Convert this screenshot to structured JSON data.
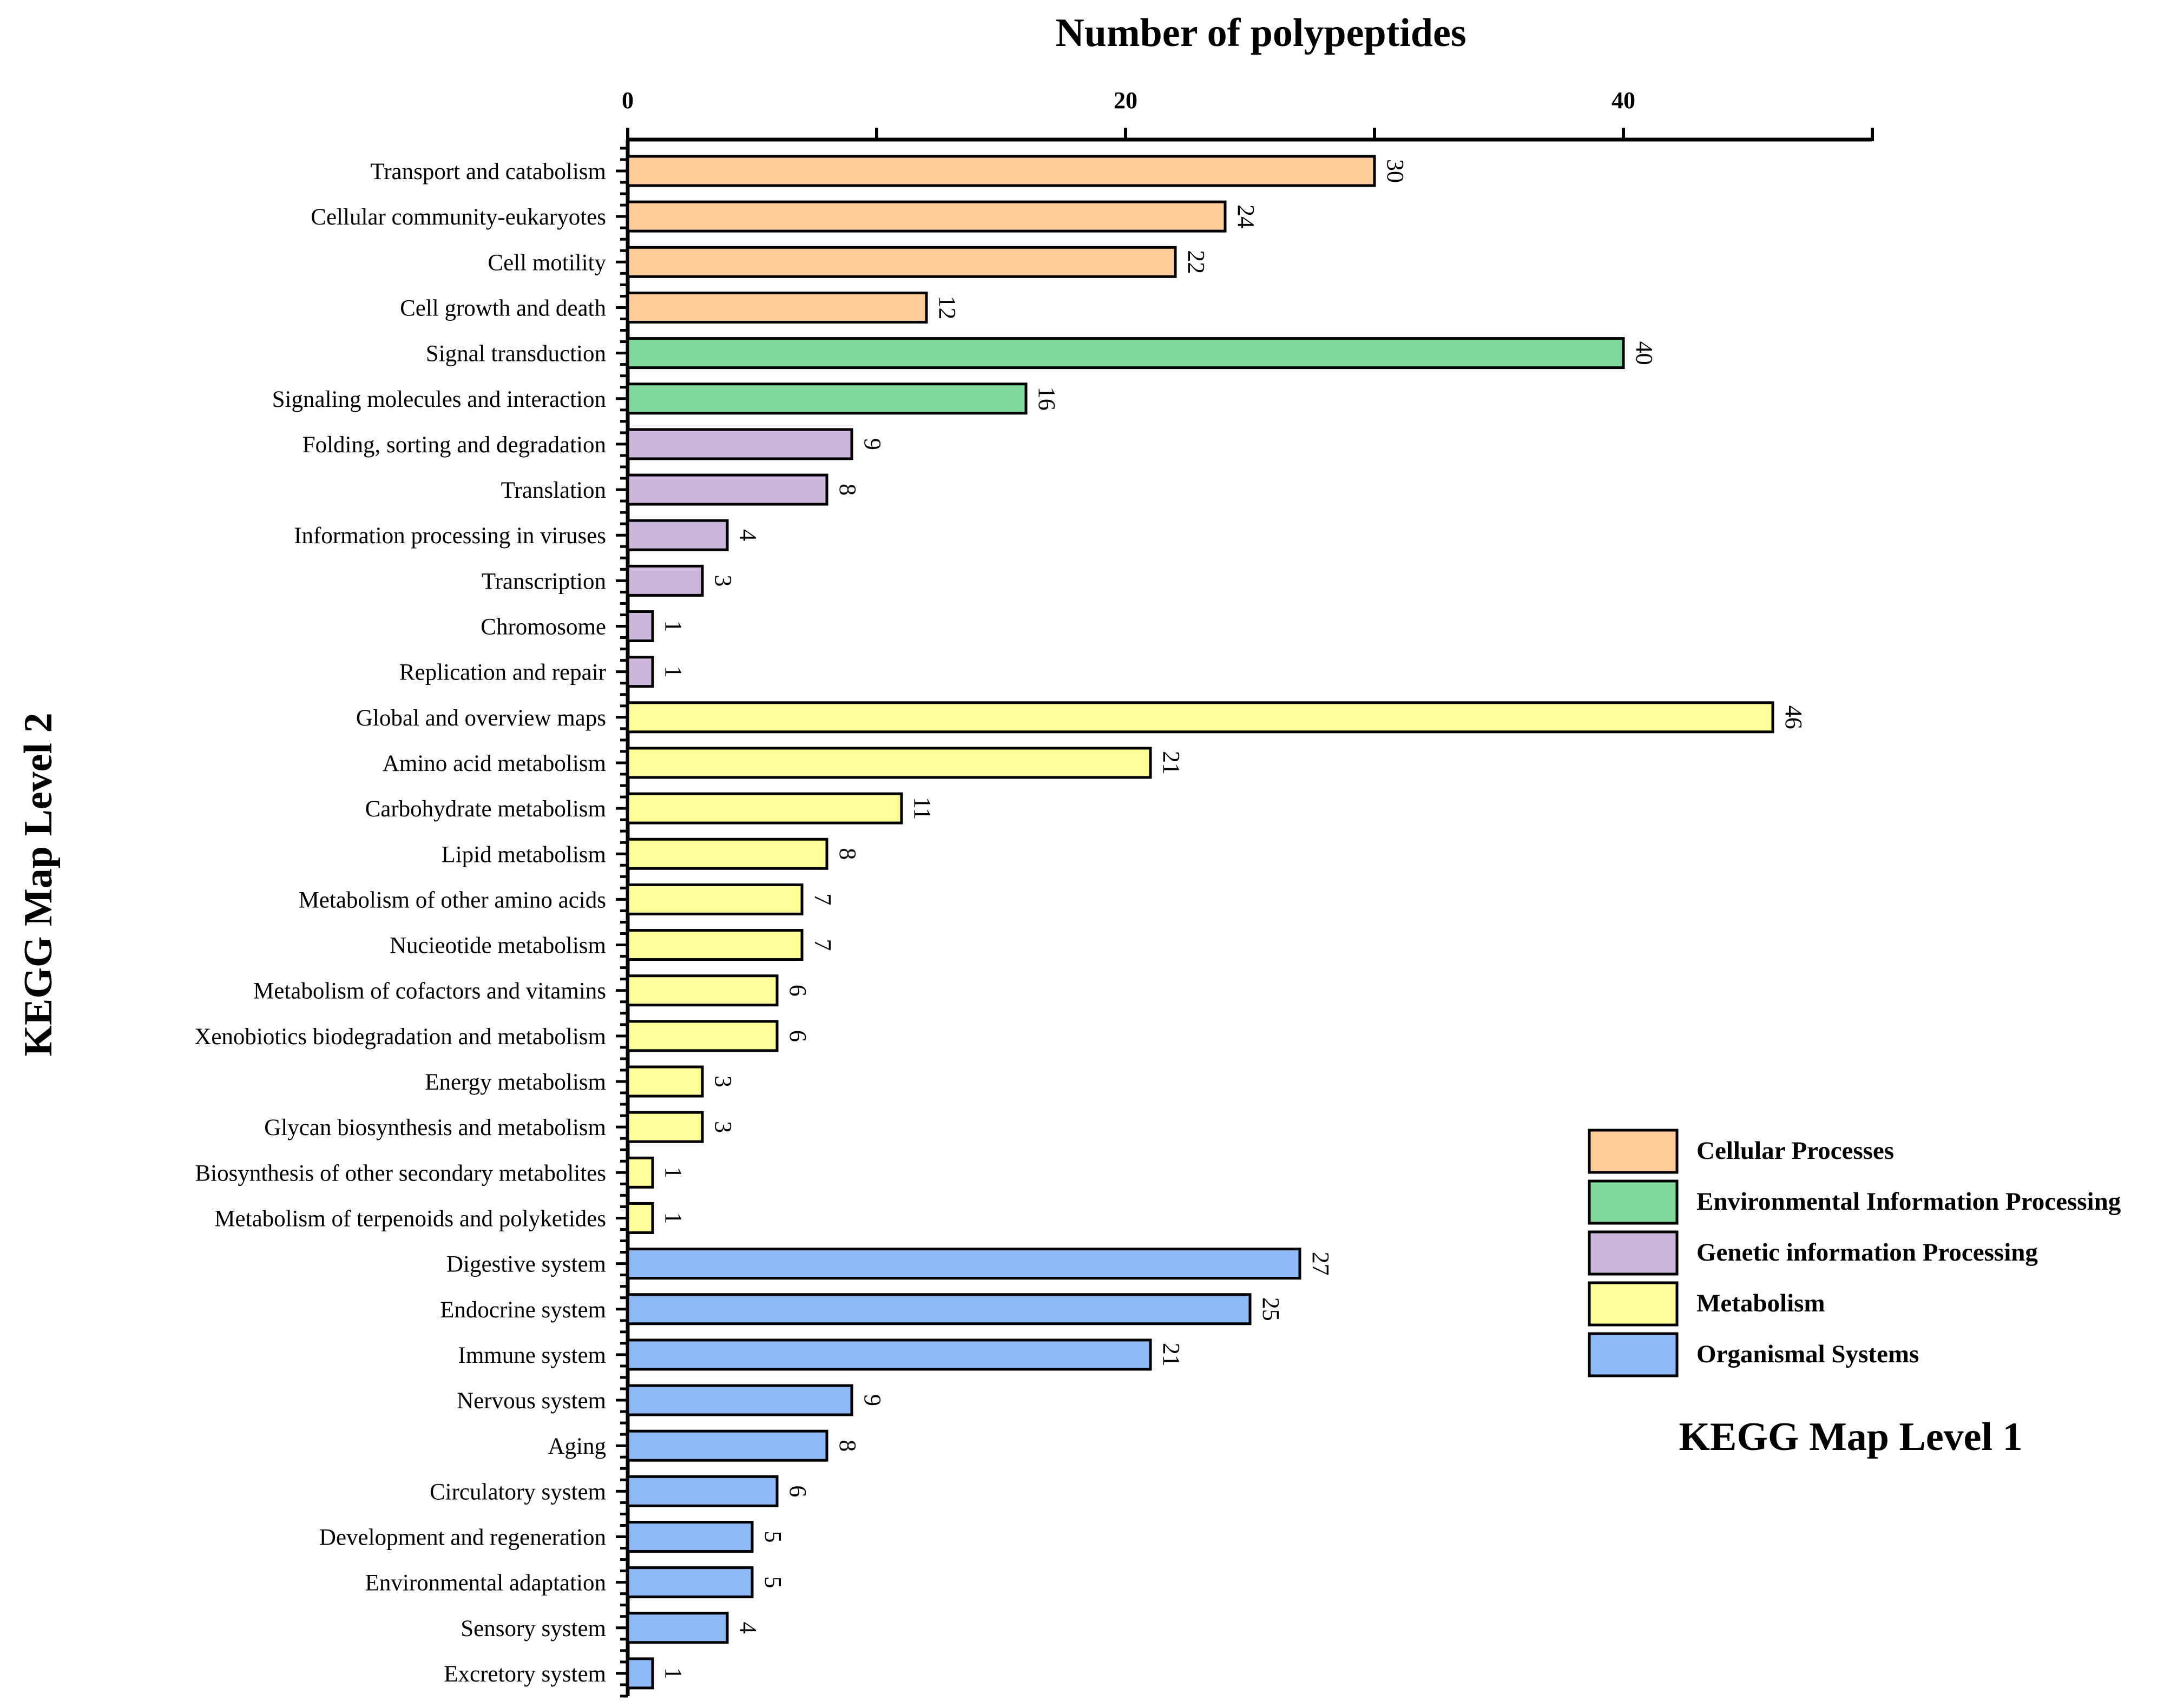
{
  "chart_data": {
    "type": "bar",
    "orientation": "horizontal",
    "title": "Number of polypeptides",
    "xlabel": "Number of polypeptides",
    "ylabel": "KEGG Map Level 2",
    "xlim": [
      0,
      50
    ],
    "xticks": [
      "0",
      "20",
      "40"
    ],
    "legend_title": "KEGG Map Level 1",
    "legend_position": "right",
    "groups": [
      {
        "name": "Cellular Processes",
        "color": "#FFCC99"
      },
      {
        "name": "Environmental Information Processing",
        "color": "#80D99B"
      },
      {
        "name": "Genetic information Processing",
        "color": "#CDB6DC"
      },
      {
        "name": "Metabolism",
        "color": "#FFFF99"
      },
      {
        "name": "Organismal Systems",
        "color": "#8EB9F7"
      }
    ],
    "categories": [
      "Transport and catabolism",
      "Cellular community-eukaryotes",
      "Cell motility",
      "Cell growth and death",
      "Signal transduction",
      "Signaling molecules and interaction",
      "Folding, sorting and degradation",
      "Translation",
      "Information processing in viruses",
      "Transcription",
      "Chromosome",
      "Replication and repair",
      "Global and overview maps",
      "Amino acid metabolism",
      "Carbohydrate metabolism",
      "Lipid metabolism",
      "Metabolism of other amino acids",
      "Nucieotide metabolism",
      "Metabolism of cofactors and vitamins",
      "Xenobiotics biodegradation and metabolism",
      "Energy metabolism",
      "Glycan biosynthesis and metabolism",
      "Biosynthesis of other secondary metabolites",
      "Metabolism of terpenoids and polyketides",
      "Digestive system",
      "Endocrine system",
      "Immune system",
      "Nervous system",
      "Aging",
      "Circulatory system",
      "Development and regeneration",
      "Environmental adaptation",
      "Sensory system",
      "Excretory system"
    ],
    "values": [
      30,
      24,
      22,
      12,
      40,
      16,
      9,
      8,
      4,
      3,
      1,
      1,
      46,
      21,
      11,
      8,
      7,
      7,
      6,
      6,
      3,
      3,
      1,
      1,
      27,
      25,
      21,
      9,
      8,
      6,
      5,
      5,
      4,
      1
    ],
    "value_labels": [
      "30",
      "24",
      "22",
      "12",
      "40",
      "16",
      "9",
      "8",
      "4",
      "3",
      "1",
      "1",
      "46",
      "21",
      "11",
      "8",
      "7",
      "7",
      "6",
      "6",
      "3",
      "3",
      "1",
      "1",
      "27",
      "25",
      "21",
      "9",
      "8",
      "6",
      "5",
      "5",
      "4",
      "1"
    ],
    "group_index": [
      0,
      0,
      0,
      0,
      1,
      1,
      2,
      2,
      2,
      2,
      2,
      2,
      3,
      3,
      3,
      3,
      3,
      3,
      3,
      3,
      3,
      3,
      3,
      3,
      4,
      4,
      4,
      4,
      4,
      4,
      4,
      4,
      4,
      4
    ]
  }
}
